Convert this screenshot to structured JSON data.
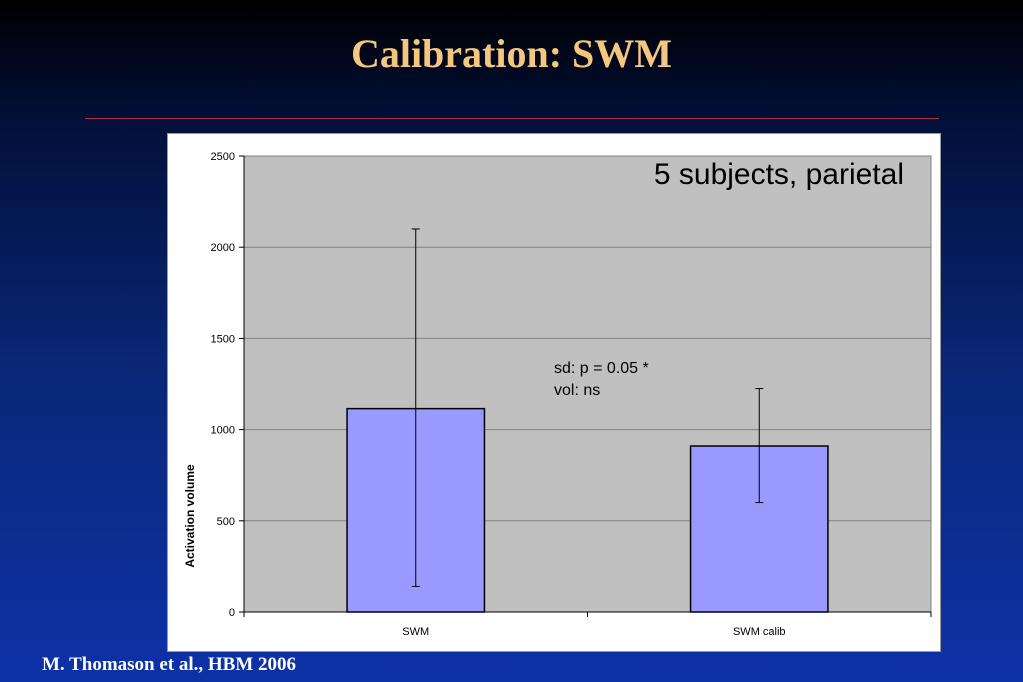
{
  "slide": {
    "title": "Calibration: SWM",
    "citation": "M. Thomason et al., HBM 2006"
  },
  "colors": {
    "title": "#f5c77e",
    "rule": "#b0304a",
    "plot_area": "#c0c0c0",
    "bar_fill": "#9999ff",
    "bar_stroke": "#000000"
  },
  "chart_data": {
    "type": "bar",
    "categories": [
      "SWM",
      "SWM calib"
    ],
    "values": [
      1115,
      910
    ],
    "error_bars": [
      {
        "low": 140,
        "high": 2100
      },
      {
        "low": 600,
        "high": 1225
      }
    ],
    "title": "",
    "xlabel": "",
    "ylabel": "Activation volume",
    "ylim": [
      0,
      2500
    ],
    "yticks": [
      0,
      500,
      1000,
      1500,
      2000,
      2500
    ],
    "grid": true,
    "legend": "none",
    "annotations": {
      "subjects": "5 subjects, parietal",
      "stats_line1": "sd: p = 0.05 *",
      "stats_line2": "vol: ns"
    }
  }
}
